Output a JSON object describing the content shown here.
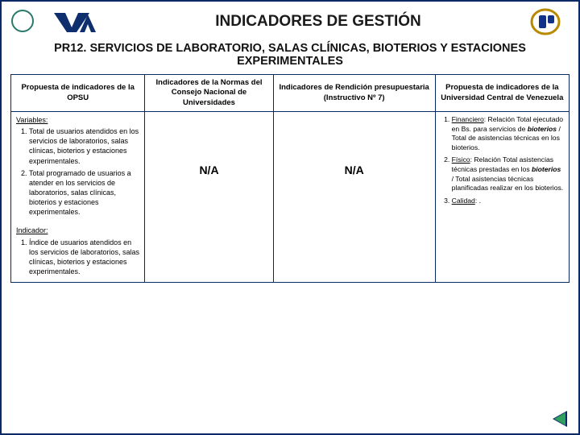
{
  "header": {
    "title": "INDICADORES DE GESTIÓN",
    "subtitle": "PR12. SERVICIOS DE LABORATORIO, SALAS CLÍNICAS, BIOTERIOS Y ESTACIONES EXPERIMENTALES",
    "logo_left_colors": {
      "shape": "#0e2e6d",
      "bg": "#ffffff"
    },
    "logo_right_colors": {
      "ring": "#b88a00",
      "plug": "#12328a"
    }
  },
  "columns": {
    "c1": "Propuesta de indicadores de la OPSU",
    "c2": "Indicadores de la Normas del Consejo Nacional de Universidades",
    "c3": "Indicadores de Rendición presupuestaria (Instructivo Nº 7)",
    "c4": "Propuesta de indicadores de la Universidad Central de Venezuela"
  },
  "cell1": {
    "variables_label": "Variables:",
    "variables": [
      "Total de usuarios atendidos en los servicios de laboratorios, salas clínicas, bioterios y estaciones experimentales.",
      "Total programado de usuarios a atender en los servicios de laboratorios, salas clínicas, bioterios y estaciones experimentales."
    ],
    "indicador_label": "Indicador:",
    "indicadores": [
      "Índice de usuarios atendidos en los servicios de laboratorios, salas clínicas, bioterios y estaciones experimentales."
    ]
  },
  "cell2": {
    "value": "N/A"
  },
  "cell3": {
    "value": "N/A"
  },
  "cell4": {
    "items": [
      {
        "label": "Financiero",
        "text": ": Relación Total ejecutado en Bs. para servicios de ",
        "bolditalic": "bioterios",
        "tail": " / Total de asistencias técnicas en los bioterios."
      },
      {
        "label": "Físico",
        "text": ": Relación Total asistencias técnicas prestadas en los ",
        "bolditalic": "bioterios",
        "tail": " / Total asistencias técnicas planificadas realizar en los bioterios."
      },
      {
        "label": "Calidad",
        "text": ": .",
        "bolditalic": "",
        "tail": ""
      }
    ]
  },
  "nav": {
    "back": "back-arrow"
  },
  "colors": {
    "border": "#0a2a66",
    "accent_circle": "#2a7a6a",
    "arrow_fill": "#2fa060"
  }
}
